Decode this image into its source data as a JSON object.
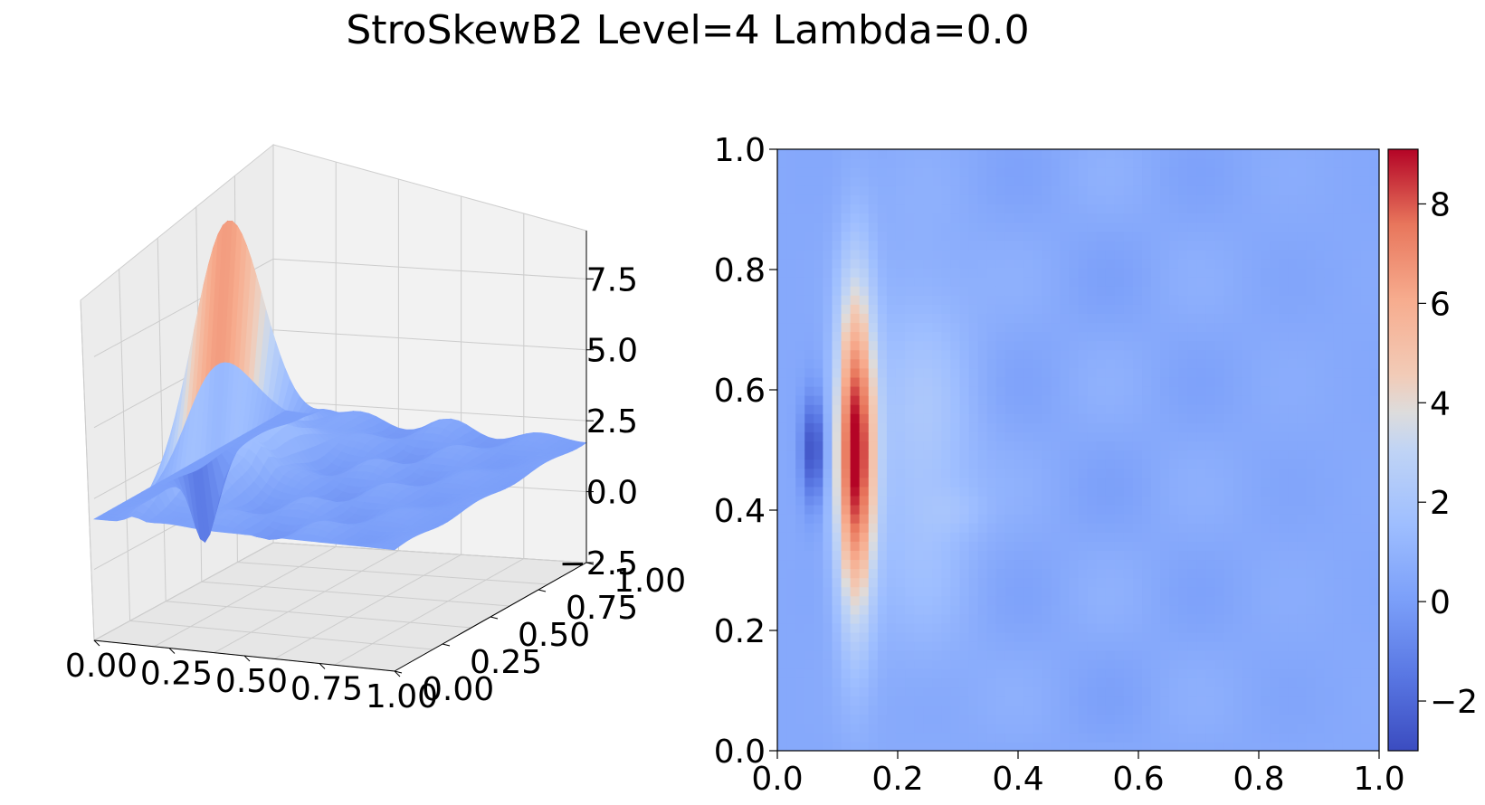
{
  "title": "StroSkewB2 Level=4 Lambda=0.0",
  "chart_data": [
    {
      "type": "surface3d",
      "colormap": "coolwarm",
      "title": "",
      "x_ticks": [
        "0.00",
        "0.25",
        "0.50",
        "0.75",
        "1.00"
      ],
      "y_ticks": [
        "0.00",
        "0.25",
        "0.50",
        "0.75",
        "1.00"
      ],
      "z_ticks": [
        "−2.5",
        "0.0",
        "2.5",
        "5.0",
        "7.5"
      ],
      "xlim": [
        0,
        1
      ],
      "ylim": [
        0,
        1
      ],
      "zlim": [
        -2.5,
        9.2
      ],
      "peak": {
        "x": 0.13,
        "y": 0.5,
        "z": 9.1
      },
      "trough": {
        "x": 0.06,
        "y": 0.5,
        "z": -3.0
      }
    },
    {
      "type": "heatmap",
      "colormap": "coolwarm",
      "title": "",
      "x_ticks": [
        "0.0",
        "0.2",
        "0.4",
        "0.6",
        "0.8",
        "1.0"
      ],
      "y_ticks": [
        "0.0",
        "0.2",
        "0.4",
        "0.6",
        "0.8",
        "1.0"
      ],
      "xlim": [
        0,
        1
      ],
      "ylim": [
        0,
        1
      ],
      "colorbar_ticks": [
        "−2",
        "0",
        "2",
        "4",
        "6",
        "8"
      ],
      "value_range": [
        -3.0,
        9.1
      ],
      "features": [
        {
          "kind": "ridge",
          "x": 0.13,
          "y": 0.5,
          "peak": 9.1
        },
        {
          "kind": "trough",
          "x": 0.06,
          "y": 0.5,
          "min": -3.0
        },
        {
          "kind": "baseline",
          "value": 0.5
        }
      ]
    }
  ]
}
